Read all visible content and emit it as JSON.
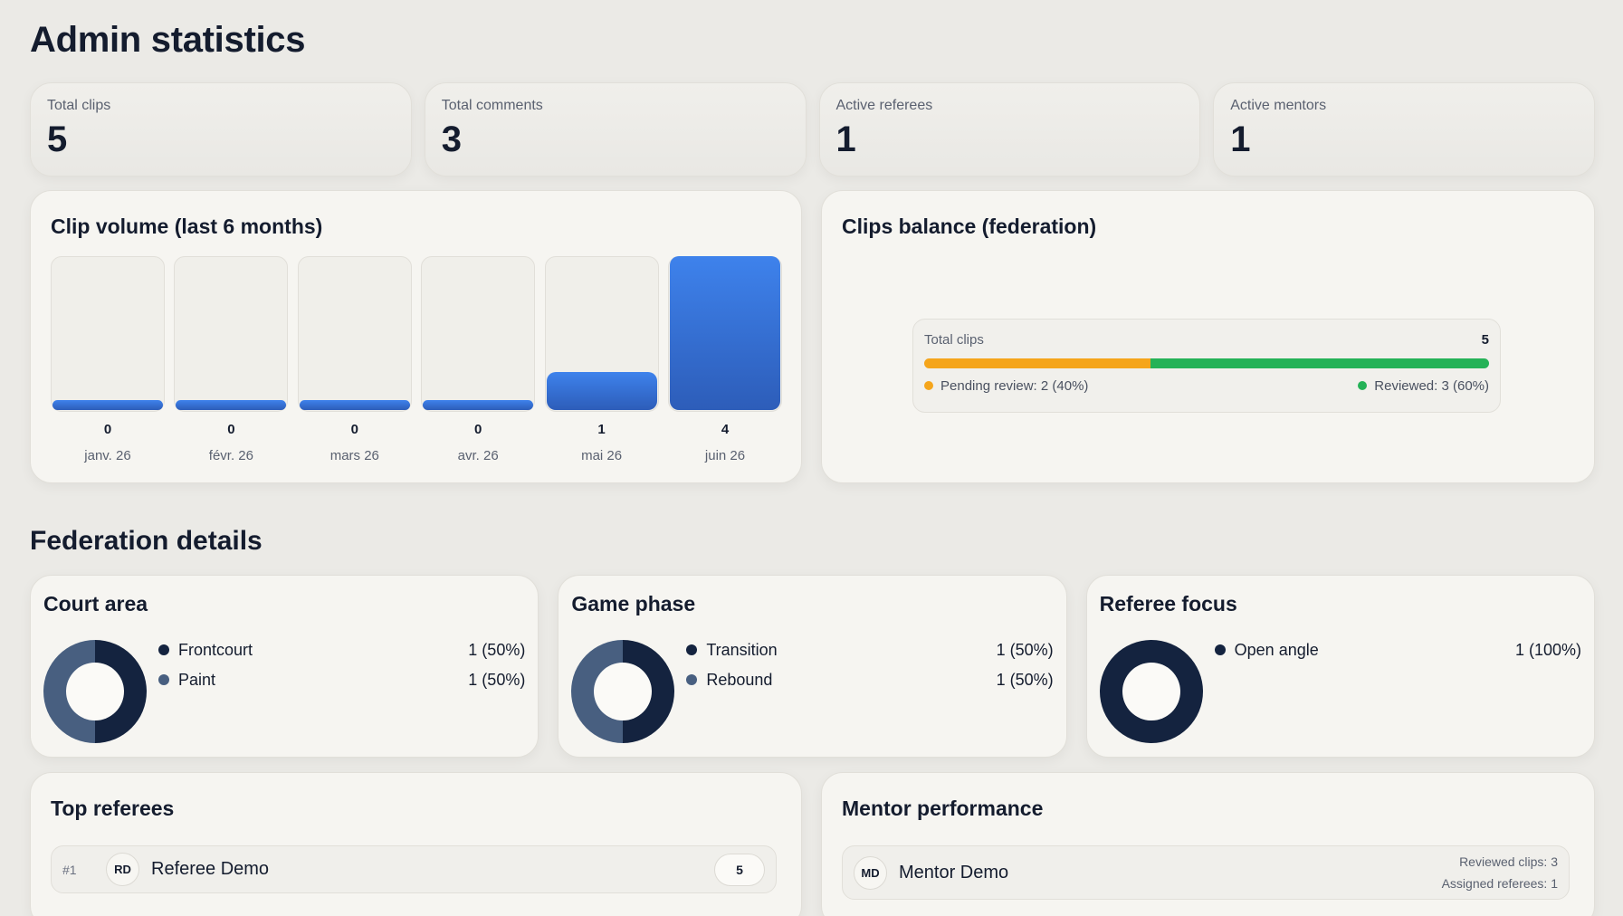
{
  "page": {
    "title": "Admin statistics"
  },
  "stats": [
    {
      "label": "Total clips",
      "value": "5"
    },
    {
      "label": "Total comments",
      "value": "3"
    },
    {
      "label": "Active referees",
      "value": "1"
    },
    {
      "label": "Active mentors",
      "value": "1"
    }
  ],
  "volume": {
    "title": "Clip volume (last 6 months)",
    "chart_data": {
      "type": "bar",
      "title": "Clip volume (last 6 months)",
      "categories": [
        "janv. 26",
        "févr. 26",
        "mars 26",
        "avr. 26",
        "mai 26",
        "juin 26"
      ],
      "values": [
        0,
        0,
        0,
        0,
        1,
        4
      ],
      "value_labels": [
        "0",
        "0",
        "0",
        "0",
        "1",
        "4"
      ],
      "ylim": [
        0,
        4
      ],
      "colors": {
        "bar": "#3b7be6"
      }
    }
  },
  "balance": {
    "title": "Clips balance (federation)",
    "label": "Total clips",
    "total": "5",
    "pending": {
      "label": "Pending review: 2 (40%)",
      "value": 2,
      "color": "#f5a51b"
    },
    "reviewed": {
      "label": "Reviewed: 3 (60%)",
      "value": 3,
      "color": "#25b257"
    }
  },
  "federation": {
    "title": "Federation details",
    "cards": [
      {
        "title": "Court area",
        "items": [
          {
            "label": "Frontcourt",
            "value": "1 (50%)",
            "share": 50,
            "color": "#14233f"
          },
          {
            "label": "Paint",
            "value": "1 (50%)",
            "share": 50,
            "color": "#485f80"
          }
        ]
      },
      {
        "title": "Game phase",
        "items": [
          {
            "label": "Transition",
            "value": "1 (50%)",
            "share": 50,
            "color": "#14233f"
          },
          {
            "label": "Rebound",
            "value": "1 (50%)",
            "share": 50,
            "color": "#485f80"
          }
        ]
      },
      {
        "title": "Referee focus",
        "items": [
          {
            "label": "Open angle",
            "value": "1 (100%)",
            "share": 100,
            "color": "#14233f"
          }
        ]
      }
    ]
  },
  "top_referees": {
    "title": "Top referees",
    "rows": [
      {
        "rank": "#1",
        "initials": "RD",
        "name": "Referee Demo",
        "count": "5"
      }
    ]
  },
  "mentor_performance": {
    "title": "Mentor performance",
    "rows": [
      {
        "initials": "MD",
        "name": "Mentor Demo",
        "reviewed": "Reviewed clips: 3",
        "assigned": "Assigned referees: 1"
      }
    ]
  }
}
